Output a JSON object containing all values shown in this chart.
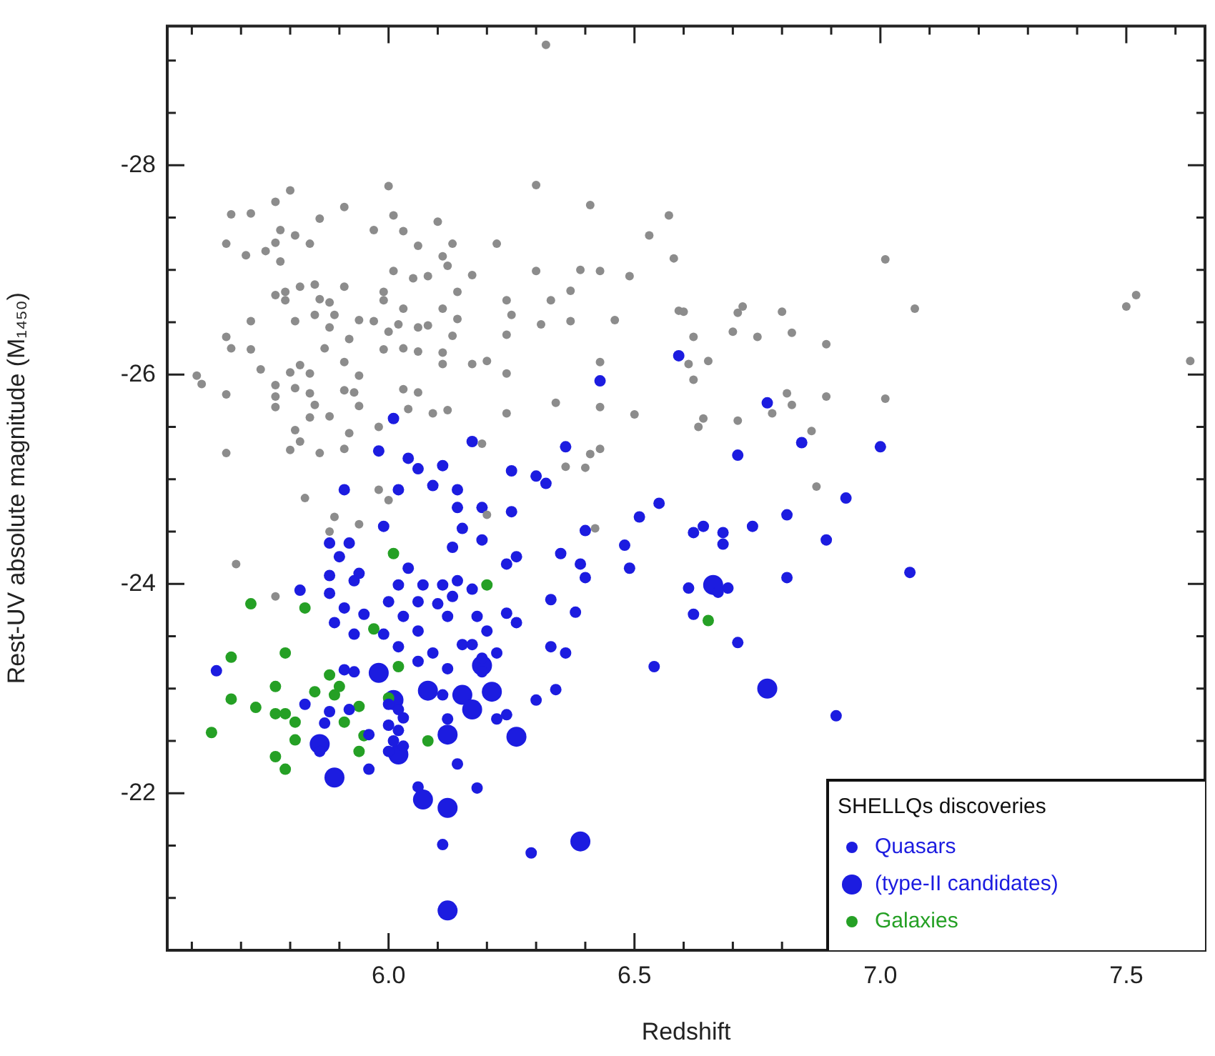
{
  "chart_data": {
    "type": "scatter",
    "xlabel": "Redshift",
    "ylabel": "Rest-UV absolute magnitude (M₁₄₅₀)",
    "legend_title": "SHELLQs discoveries",
    "legend": "bottom right",
    "marker": "circle",
    "xlim": [
      5.55,
      7.66
    ],
    "ylim": [
      -20.5,
      -29.33
    ],
    "xticks": [
      {
        "value": 5.6,
        "label": null
      },
      {
        "value": 5.7,
        "label": null
      },
      {
        "value": 5.8,
        "label": null
      },
      {
        "value": 5.9,
        "label": null
      },
      {
        "value": 6,
        "label": "6.0"
      },
      {
        "value": 6.1,
        "label": null
      },
      {
        "value": 6.2,
        "label": null
      },
      {
        "value": 6.3,
        "label": null
      },
      {
        "value": 6.4,
        "label": null
      },
      6.5,
      {
        "value": 6.6,
        "label": null
      },
      {
        "value": 6.7,
        "label": null
      },
      {
        "value": 6.8,
        "label": null
      },
      {
        "value": 6.9,
        "label": null
      },
      {
        "value": 7,
        "label": "7.0"
      },
      {
        "value": 7.1,
        "label": null
      },
      {
        "value": 7.2,
        "label": null
      },
      {
        "value": 7.3,
        "label": null
      },
      {
        "value": 7.4,
        "label": null
      },
      7.5,
      {
        "value": 7.6,
        "label": null
      }
    ],
    "yticks": [
      {
        "value": -21,
        "label": null
      },
      {
        "value": -21.5,
        "label": null
      },
      -22,
      {
        "value": -22.5,
        "label": null
      },
      {
        "value": -23,
        "label": null
      },
      {
        "value": -23.5,
        "label": null
      },
      -24,
      {
        "value": -24.5,
        "label": null
      },
      {
        "value": -25,
        "label": null
      },
      {
        "value": -25.5,
        "label": null
      },
      -26,
      {
        "value": -26.5,
        "label": null
      },
      {
        "value": -27,
        "label": null
      },
      {
        "value": -27.5,
        "label": null
      },
      -28,
      {
        "value": -28.5,
        "label": null
      },
      {
        "value": -29,
        "label": null
      }
    ],
    "series": [
      {
        "color": "#8c8c8c",
        "x": [
          6.32,
          5.8,
          5.77,
          6.0,
          6.3,
          5.68,
          5.72,
          5.91,
          5.86,
          6.01,
          6.1,
          6.41,
          6.57,
          5.97,
          6.03,
          6.53,
          5.78,
          5.67,
          5.71,
          5.75,
          5.77,
          5.81,
          5.84,
          5.78,
          6.06,
          6.13,
          6.22,
          6.11,
          6.12,
          6.01,
          6.05,
          6.08,
          6.17,
          6.3,
          6.39,
          6.43,
          6.49,
          6.58,
          5.77,
          5.79,
          5.82,
          5.85,
          5.91,
          5.79,
          5.86,
          5.88,
          5.99,
          5.99,
          6.14,
          6.24,
          6.33,
          6.37,
          6.59,
          5.72,
          5.81,
          5.85,
          5.88,
          5.89,
          5.94,
          5.97,
          6.03,
          6.0,
          6.02,
          6.06,
          6.08,
          6.11,
          6.14,
          6.13,
          6.25,
          6.24,
          6.31,
          6.37,
          6.46,
          5.67,
          5.68,
          5.72,
          5.74,
          5.87,
          5.92,
          5.99,
          6.03,
          6.06,
          6.11,
          6.11,
          6.17,
          6.2,
          6.24,
          6.43,
          5.61,
          5.62,
          5.8,
          5.82,
          5.84,
          5.91,
          5.94,
          5.77,
          5.81,
          5.67,
          5.77,
          5.84,
          5.91,
          5.93,
          6.03,
          6.06,
          5.77,
          5.85,
          5.94,
          6.04,
          6.09,
          6.12,
          6.24,
          6.34,
          6.43,
          6.5,
          5.88,
          5.84,
          5.81,
          5.82,
          5.92,
          5.67,
          5.8,
          5.86,
          5.91,
          6.41,
          6.43,
          6.36,
          6.4,
          5.98,
          6.19,
          7.01,
          7.07,
          6.6,
          6.72,
          6.71,
          6.8,
          6.62,
          6.7,
          6.75,
          6.82,
          6.89,
          6.65,
          6.61,
          6.62,
          6.81,
          6.82,
          6.78,
          6.89,
          7.01,
          6.64,
          6.63,
          6.71,
          6.86,
          6.87,
          7.5,
          7.52,
          7.63,
          5.83,
          5.98,
          6.0,
          5.89,
          5.94,
          5.88,
          5.69,
          5.77,
          6.2,
          6.42
        ],
        "values": [
          -29.15,
          -27.76,
          -27.65,
          -27.8,
          -27.81,
          -27.53,
          -27.54,
          -27.6,
          -27.49,
          -27.52,
          -27.46,
          -27.62,
          -27.52,
          -27.38,
          -27.37,
          -27.33,
          -27.38,
          -27.25,
          -27.14,
          -27.18,
          -27.26,
          -27.33,
          -27.25,
          -27.08,
          -27.23,
          -27.25,
          -27.25,
          -27.13,
          -27.04,
          -26.99,
          -26.92,
          -26.94,
          -26.95,
          -26.99,
          -27.0,
          -26.99,
          -26.94,
          -27.11,
          -26.76,
          -26.79,
          -26.84,
          -26.86,
          -26.84,
          -26.71,
          -26.72,
          -26.69,
          -26.79,
          -26.71,
          -26.79,
          -26.71,
          -26.71,
          -26.8,
          -26.61,
          -26.51,
          -26.51,
          -26.57,
          -26.45,
          -26.57,
          -26.52,
          -26.51,
          -26.63,
          -26.41,
          -26.48,
          -26.45,
          -26.47,
          -26.63,
          -26.53,
          -26.37,
          -26.57,
          -26.38,
          -26.48,
          -26.51,
          -26.52,
          -26.36,
          -26.25,
          -26.24,
          -26.05,
          -26.25,
          -26.34,
          -26.24,
          -26.25,
          -26.22,
          -26.21,
          -26.1,
          -26.1,
          -26.13,
          -26.01,
          -26.12,
          -25.99,
          -25.91,
          -26.02,
          -26.09,
          -26.01,
          -26.12,
          -25.99,
          -25.9,
          -25.87,
          -25.81,
          -25.79,
          -25.82,
          -25.85,
          -25.83,
          -25.86,
          -25.83,
          -25.69,
          -25.71,
          -25.7,
          -25.67,
          -25.63,
          -25.66,
          -25.63,
          -25.73,
          -25.69,
          -25.62,
          -25.6,
          -25.59,
          -25.47,
          -25.36,
          -25.44,
          -25.25,
          -25.28,
          -25.25,
          -25.29,
          -25.24,
          -25.29,
          -25.12,
          -25.11,
          -25.5,
          -25.34,
          -27.1,
          -26.63,
          -26.6,
          -26.65,
          -26.59,
          -26.6,
          -26.36,
          -26.41,
          -26.36,
          -26.4,
          -26.29,
          -26.13,
          -26.1,
          -25.95,
          -25.82,
          -25.71,
          -25.63,
          -25.79,
          -25.77,
          -25.58,
          -25.5,
          -25.56,
          -25.46,
          -24.93,
          -26.65,
          -26.76,
          -26.13,
          -24.82,
          -24.9,
          -24.8,
          -24.64,
          -24.57,
          -24.5,
          -24.19,
          -23.88,
          -24.66,
          -24.53
        ]
      },
      {
        "name": "Quasars",
        "color": "#1c1ce0",
        "x": [
          6.43,
          6.59,
          6.01,
          5.98,
          6.17,
          6.36,
          6.04,
          6.06,
          6.11,
          6.25,
          6.3,
          6.32,
          5.91,
          6.02,
          6.09,
          6.14,
          6.77,
          6.71,
          6.84,
          7.0,
          6.93,
          6.14,
          6.19,
          6.25,
          6.51,
          6.55,
          5.99,
          6.15,
          6.19,
          6.4,
          5.88,
          5.92,
          5.9,
          6.13,
          6.04,
          6.24,
          6.26,
          6.35,
          6.39,
          6.4,
          6.48,
          6.49,
          5.88,
          5.94,
          5.93,
          5.82,
          5.88,
          6.02,
          6.07,
          6.11,
          6.14,
          6.17,
          6.0,
          6.06,
          6.1,
          6.13,
          5.91,
          5.95,
          6.03,
          6.12,
          6.18,
          6.24,
          6.26,
          6.33,
          6.38,
          5.89,
          5.99,
          6.06,
          5.93,
          6.2,
          6.02,
          6.09,
          6.15,
          6.17,
          6.22,
          6.33,
          6.36,
          6.06,
          6.19,
          6.19,
          5.65,
          5.91,
          5.93,
          6.12,
          6.54,
          6.11,
          6.34,
          6.3,
          5.83,
          5.88,
          5.92,
          5.96,
          6.0,
          6.02,
          6.03,
          6.0,
          6.02,
          6.01,
          6.03,
          6.0,
          6.22,
          6.24,
          6.12,
          5.87,
          5.86,
          5.96,
          6.14,
          6.06,
          6.18,
          6.11,
          6.29,
          6.81,
          6.62,
          6.64,
          6.68,
          6.68,
          6.74,
          6.89,
          7.06,
          6.61,
          6.69,
          6.67,
          6.81,
          6.62,
          6.71,
          6.91
        ],
        "values": [
          -25.94,
          -26.18,
          -25.58,
          -25.27,
          -25.36,
          -25.31,
          -25.2,
          -25.1,
          -25.13,
          -25.08,
          -25.03,
          -24.96,
          -24.9,
          -24.9,
          -24.94,
          -24.9,
          -25.73,
          -25.23,
          -25.35,
          -25.31,
          -24.82,
          -24.73,
          -24.73,
          -24.69,
          -24.64,
          -24.77,
          -24.55,
          -24.53,
          -24.42,
          -24.51,
          -24.39,
          -24.39,
          -24.26,
          -24.35,
          -24.15,
          -24.19,
          -24.26,
          -24.29,
          -24.19,
          -24.06,
          -24.37,
          -24.15,
          -24.08,
          -24.1,
          -24.03,
          -23.94,
          -23.91,
          -23.99,
          -23.99,
          -23.99,
          -24.03,
          -23.95,
          -23.83,
          -23.83,
          -23.81,
          -23.88,
          -23.77,
          -23.71,
          -23.69,
          -23.69,
          -23.69,
          -23.72,
          -23.63,
          -23.85,
          -23.73,
          -23.63,
          -23.52,
          -23.55,
          -23.52,
          -23.55,
          -23.4,
          -23.34,
          -23.42,
          -23.42,
          -23.34,
          -23.4,
          -23.34,
          -23.26,
          -23.29,
          -23.16,
          -23.17,
          -23.18,
          -23.16,
          -23.19,
          -23.21,
          -22.94,
          -22.99,
          -22.89,
          -22.85,
          -22.78,
          -22.8,
          -22.56,
          -22.85,
          -22.8,
          -22.72,
          -22.65,
          -22.6,
          -22.5,
          -22.45,
          -22.4,
          -22.71,
          -22.75,
          -22.71,
          -22.67,
          -22.4,
          -22.23,
          -22.28,
          -22.06,
          -22.05,
          -21.51,
          -21.43,
          -24.66,
          -24.49,
          -24.55,
          -24.49,
          -24.38,
          -24.55,
          -24.42,
          -24.11,
          -23.96,
          -23.96,
          -23.92,
          -24.06,
          -23.71,
          -23.44,
          -22.74
        ]
      },
      {
        "name": "(type-II candidates)",
        "color": "#1c1ce0",
        "x": [
          5.98,
          6.08,
          6.15,
          6.21,
          6.17,
          6.01,
          6.02,
          6.12,
          6.26,
          5.86,
          5.89,
          6.07,
          6.12,
          6.39,
          6.12,
          6.19,
          6.66,
          6.77
        ],
        "values": [
          -23.15,
          -22.98,
          -22.94,
          -22.97,
          -22.8,
          -22.89,
          -22.37,
          -22.56,
          -22.54,
          -22.47,
          -22.15,
          -21.94,
          -21.86,
          -21.54,
          -20.88,
          -23.22,
          -23.99,
          -23.0
        ]
      },
      {
        "name": "Galaxies",
        "color": "#25a025",
        "x": [
          6.01,
          6.2,
          5.72,
          5.83,
          5.97,
          5.68,
          5.79,
          5.88,
          6.02,
          5.77,
          5.85,
          5.9,
          5.89,
          5.68,
          5.73,
          5.77,
          5.79,
          5.81,
          5.94,
          6.0,
          5.64,
          5.81,
          5.91,
          5.95,
          6.08,
          5.77,
          5.79,
          5.94,
          6.65
        ],
        "values": [
          -24.29,
          -23.99,
          -23.81,
          -23.77,
          -23.57,
          -23.3,
          -23.34,
          -23.13,
          -23.21,
          -23.02,
          -22.97,
          -23.02,
          -22.94,
          -22.9,
          -22.82,
          -22.76,
          -22.76,
          -22.68,
          -22.83,
          -22.91,
          -22.58,
          -22.51,
          -22.68,
          -22.55,
          -22.5,
          -22.35,
          -22.23,
          -22.4,
          -23.65
        ]
      }
    ]
  }
}
